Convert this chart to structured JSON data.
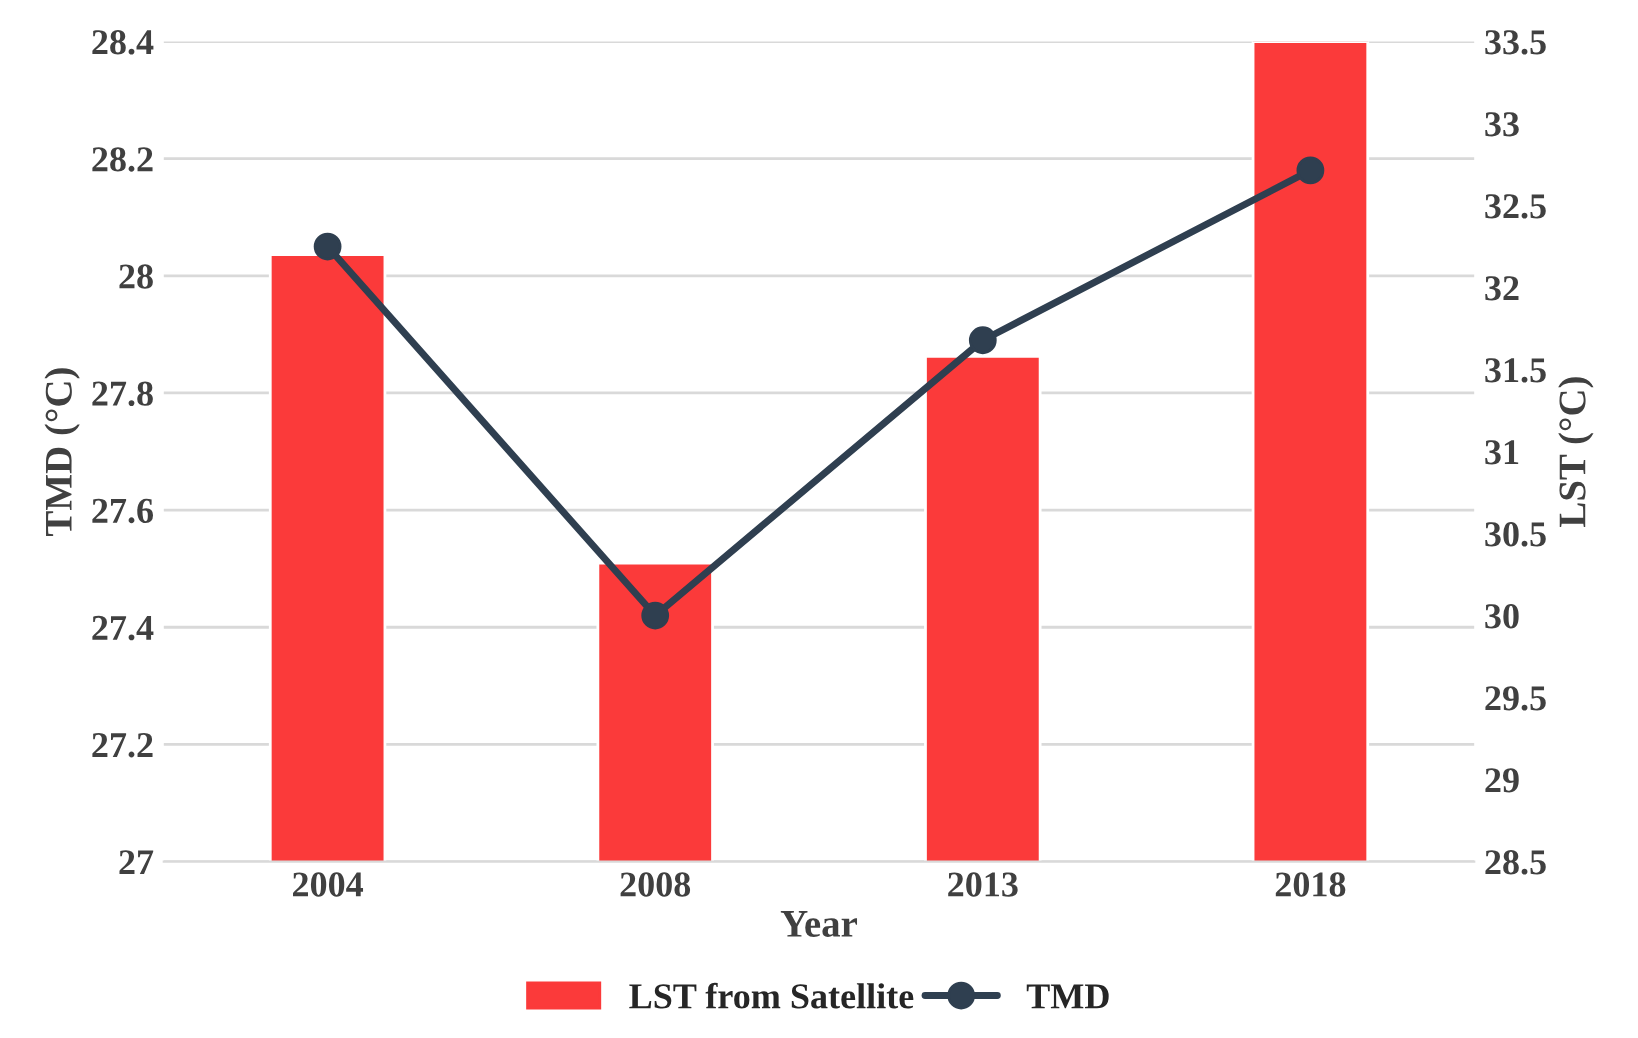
{
  "chart_data": {
    "type": "bar",
    "xlabel": "Year",
    "ylabel": "TMD (°C)",
    "y2label": "LST (°C)",
    "categories": [
      "2004",
      "2008",
      "2013",
      "2018"
    ],
    "series": [
      {
        "name": "LST from Satellite",
        "axis": "y2",
        "color": "#fb3a3a",
        "values": [
          32.2,
          30.32,
          31.58,
          33.5
        ]
      },
      {
        "name": "TMD",
        "type": "line",
        "axis": "y",
        "color": "#2f3f50",
        "marker": "circle",
        "values": [
          28.05,
          27.42,
          27.89,
          28.18
        ]
      }
    ],
    "ylim": [
      27,
      28.4
    ],
    "yticks": [
      27,
      27.2,
      27.4,
      27.6,
      27.8,
      28,
      28.2,
      28.4
    ],
    "y2lim": [
      28.5,
      33.5
    ],
    "y2ticks": [
      28.5,
      29,
      29.5,
      30,
      30.5,
      31,
      31.5,
      32,
      32.5,
      33,
      33.5
    ],
    "grid": "y",
    "legend": "bottom"
  }
}
